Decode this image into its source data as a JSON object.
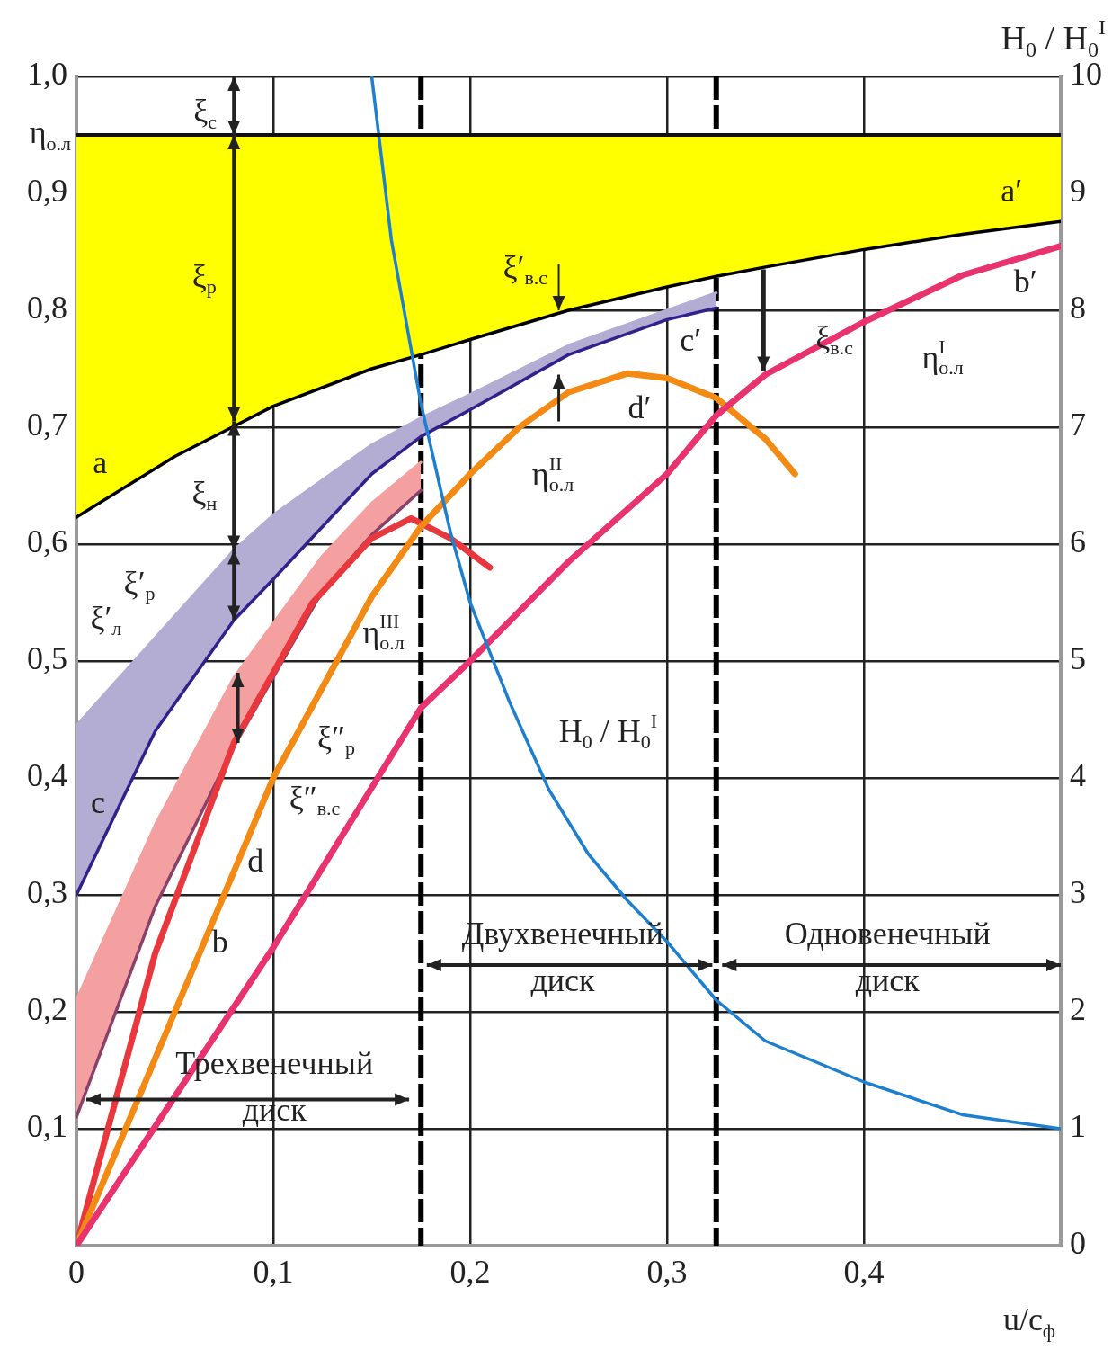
{
  "chart_data": {
    "type": "line",
    "xlabel": "u/c$_{ф}$",
    "y2label": "H$_{0}$ / H$_{0}$$^{I}$",
    "xlim": [
      0,
      0.5
    ],
    "xticks": [
      0,
      {
        "value": 0.1,
        "label": "0,1"
      },
      {
        "value": 0.2,
        "label": "0,2"
      },
      {
        "value": 0.3,
        "label": "0,3"
      },
      {
        "value": 0.4,
        "label": "0,4"
      },
      {
        "value": 0.5,
        "label": null
      }
    ],
    "ylim": [
      0,
      1
    ],
    "yticks": [
      {
        "value": 0,
        "label": null
      },
      {
        "value": 0.1,
        "label": "0,1"
      },
      {
        "value": 0.2,
        "label": "0,2"
      },
      {
        "value": 0.3,
        "label": "0,3"
      },
      {
        "value": 0.4,
        "label": "0,4"
      },
      {
        "value": 0.5,
        "label": "0,5"
      },
      {
        "value": 0.6,
        "label": "0,6"
      },
      {
        "value": 0.7,
        "label": "0,7"
      },
      {
        "value": 0.8,
        "label": "0,8"
      },
      {
        "value": 0.9,
        "label": "0,9"
      },
      {
        "value": 0.95,
        "label": "η$_{о.л}$"
      },
      {
        "value": 1,
        "label": "1,0"
      }
    ],
    "y2lim": [
      0,
      10
    ],
    "y2ticks": [
      0,
      1,
      2,
      3,
      4,
      5,
      6,
      7,
      8,
      9,
      10
    ],
    "grid": true,
    "legend": false,
    "marker": "none",
    "series": [
      {
        "type": "area",
        "color": "#ffff00",
        "x": [
          0,
          0.05,
          0.1,
          0.15,
          0.175,
          0.2,
          0.25,
          0.3,
          0.325,
          0.35,
          0.4,
          0.45,
          0.5
        ],
        "values": [
          0.95,
          0.95,
          0.95,
          0.95,
          0.95,
          0.95,
          0.95,
          0.95,
          0.95,
          0.95,
          0.95,
          0.95,
          0.95
        ]
      },
      {
        "type": "line",
        "color": "#000000",
        "x": [
          0,
          0.05,
          0.1,
          0.15,
          0.175,
          0.2,
          0.25,
          0.3,
          0.325,
          0.35,
          0.4,
          0.45,
          0.5
        ],
        "values": [
          0.623,
          0.675,
          0.718,
          0.75,
          0.762,
          0.775,
          0.8,
          0.82,
          0.829,
          0.837,
          0.852,
          0.865,
          0.876
        ]
      },
      {
        "type": "area",
        "color": "#b3acd3",
        "x": [
          0,
          0.04,
          0.08,
          0.1,
          0.125,
          0.15,
          0.175,
          0.2,
          0.25,
          0.3,
          0.325
        ],
        "values": [
          0.445,
          0.52,
          0.595,
          0.625,
          0.655,
          0.685,
          0.708,
          0.728,
          0.77,
          0.8,
          0.815
        ]
      },
      {
        "type": "line",
        "color": "#33208a",
        "x": [
          0,
          0.04,
          0.08,
          0.1,
          0.125,
          0.15,
          0.175,
          0.2,
          0.25,
          0.3,
          0.325
        ],
        "values": [
          0.3,
          0.44,
          0.535,
          0.57,
          0.615,
          0.66,
          0.692,
          0.715,
          0.762,
          0.792,
          0.802
        ]
      },
      {
        "type": "area",
        "color": "#f4a0a0",
        "x": [
          0,
          0.04,
          0.08,
          0.125,
          0.15,
          0.175
        ],
        "values": [
          0.21,
          0.36,
          0.486,
          0.59,
          0.635,
          0.67
        ]
      },
      {
        "type": "line",
        "color": "#8a4068",
        "x": [
          0,
          0.04,
          0.08,
          0.125,
          0.15,
          0.175
        ],
        "values": [
          0.11,
          0.29,
          0.427,
          0.56,
          0.608,
          0.646
        ]
      },
      {
        "color": "#e8383d",
        "x": [
          0,
          0.04,
          0.08,
          0.12,
          0.15,
          0.17,
          0.19,
          0.21
        ],
        "values": [
          0,
          0.25,
          0.43,
          0.55,
          0.605,
          0.622,
          0.605,
          0.58
        ]
      },
      {
        "color": "#f28a14",
        "x": [
          0,
          0.05,
          0.1,
          0.15,
          0.175,
          0.2,
          0.225,
          0.25,
          0.28,
          0.3,
          0.325,
          0.35,
          0.365
        ],
        "values": [
          0,
          0.2,
          0.4,
          0.555,
          0.615,
          0.66,
          0.7,
          0.73,
          0.746,
          0.742,
          0.725,
          0.69,
          0.66
        ]
      },
      {
        "color": "#e8336f",
        "x": [
          0,
          0.1,
          0.175,
          0.2,
          0.25,
          0.3,
          0.325,
          0.35,
          0.4,
          0.45,
          0.5
        ],
        "values": [
          0,
          0.255,
          0.46,
          0.5,
          0.585,
          0.66,
          0.71,
          0.745,
          0.79,
          0.83,
          0.855
        ]
      },
      {
        "color": "#1f7fcf",
        "axis": "y2",
        "x": [
          0.15,
          0.16,
          0.175,
          0.19,
          0.2,
          0.22,
          0.24,
          0.26,
          0.28,
          0.3,
          0.325,
          0.35,
          0.4,
          0.45,
          0.5
        ],
        "values": [
          10,
          8.6,
          7.2,
          6.1,
          5.5,
          4.65,
          3.9,
          3.35,
          2.95,
          2.6,
          2.1,
          1.75,
          1.4,
          1.12,
          1
        ]
      }
    ],
    "ref_lines": [
      {
        "axis": "x",
        "value": 0.175,
        "line_style": "dashed",
        "color": "#000000"
      },
      {
        "axis": "x",
        "value": 0.325,
        "line_style": "dashed",
        "color": "#000000"
      }
    ],
    "annotations": [
      "a",
      "a′",
      "b",
      "b′",
      "c",
      "c′",
      "d",
      "d′",
      {
        "text": "ξ$_{с}$",
        "x": 0.08,
        "y": 0.95
      },
      "ξ$_{р}$",
      "ξ$_{н}$",
      "ξ′$_{р}$",
      "ξ′$_{л}$",
      "ξ″$_{р}$",
      "ξ″$_{в.с}$",
      "ξ′$_{в.с}$",
      "ξ$_{в.с}$",
      "η$^{I}$$_{о.л}$",
      "η$^{II}$$_{о.л}$",
      "η$^{III}$$_{о.л}$",
      "H$_{0}$ / H$_{0}$$^{I}$",
      {
        "text": "Трехвенечный\nдиск",
        "x": 0.175,
        "y": 0.125
      },
      "Двухвенечный\nдиск",
      "Одновенечный\nдиск"
    ]
  }
}
